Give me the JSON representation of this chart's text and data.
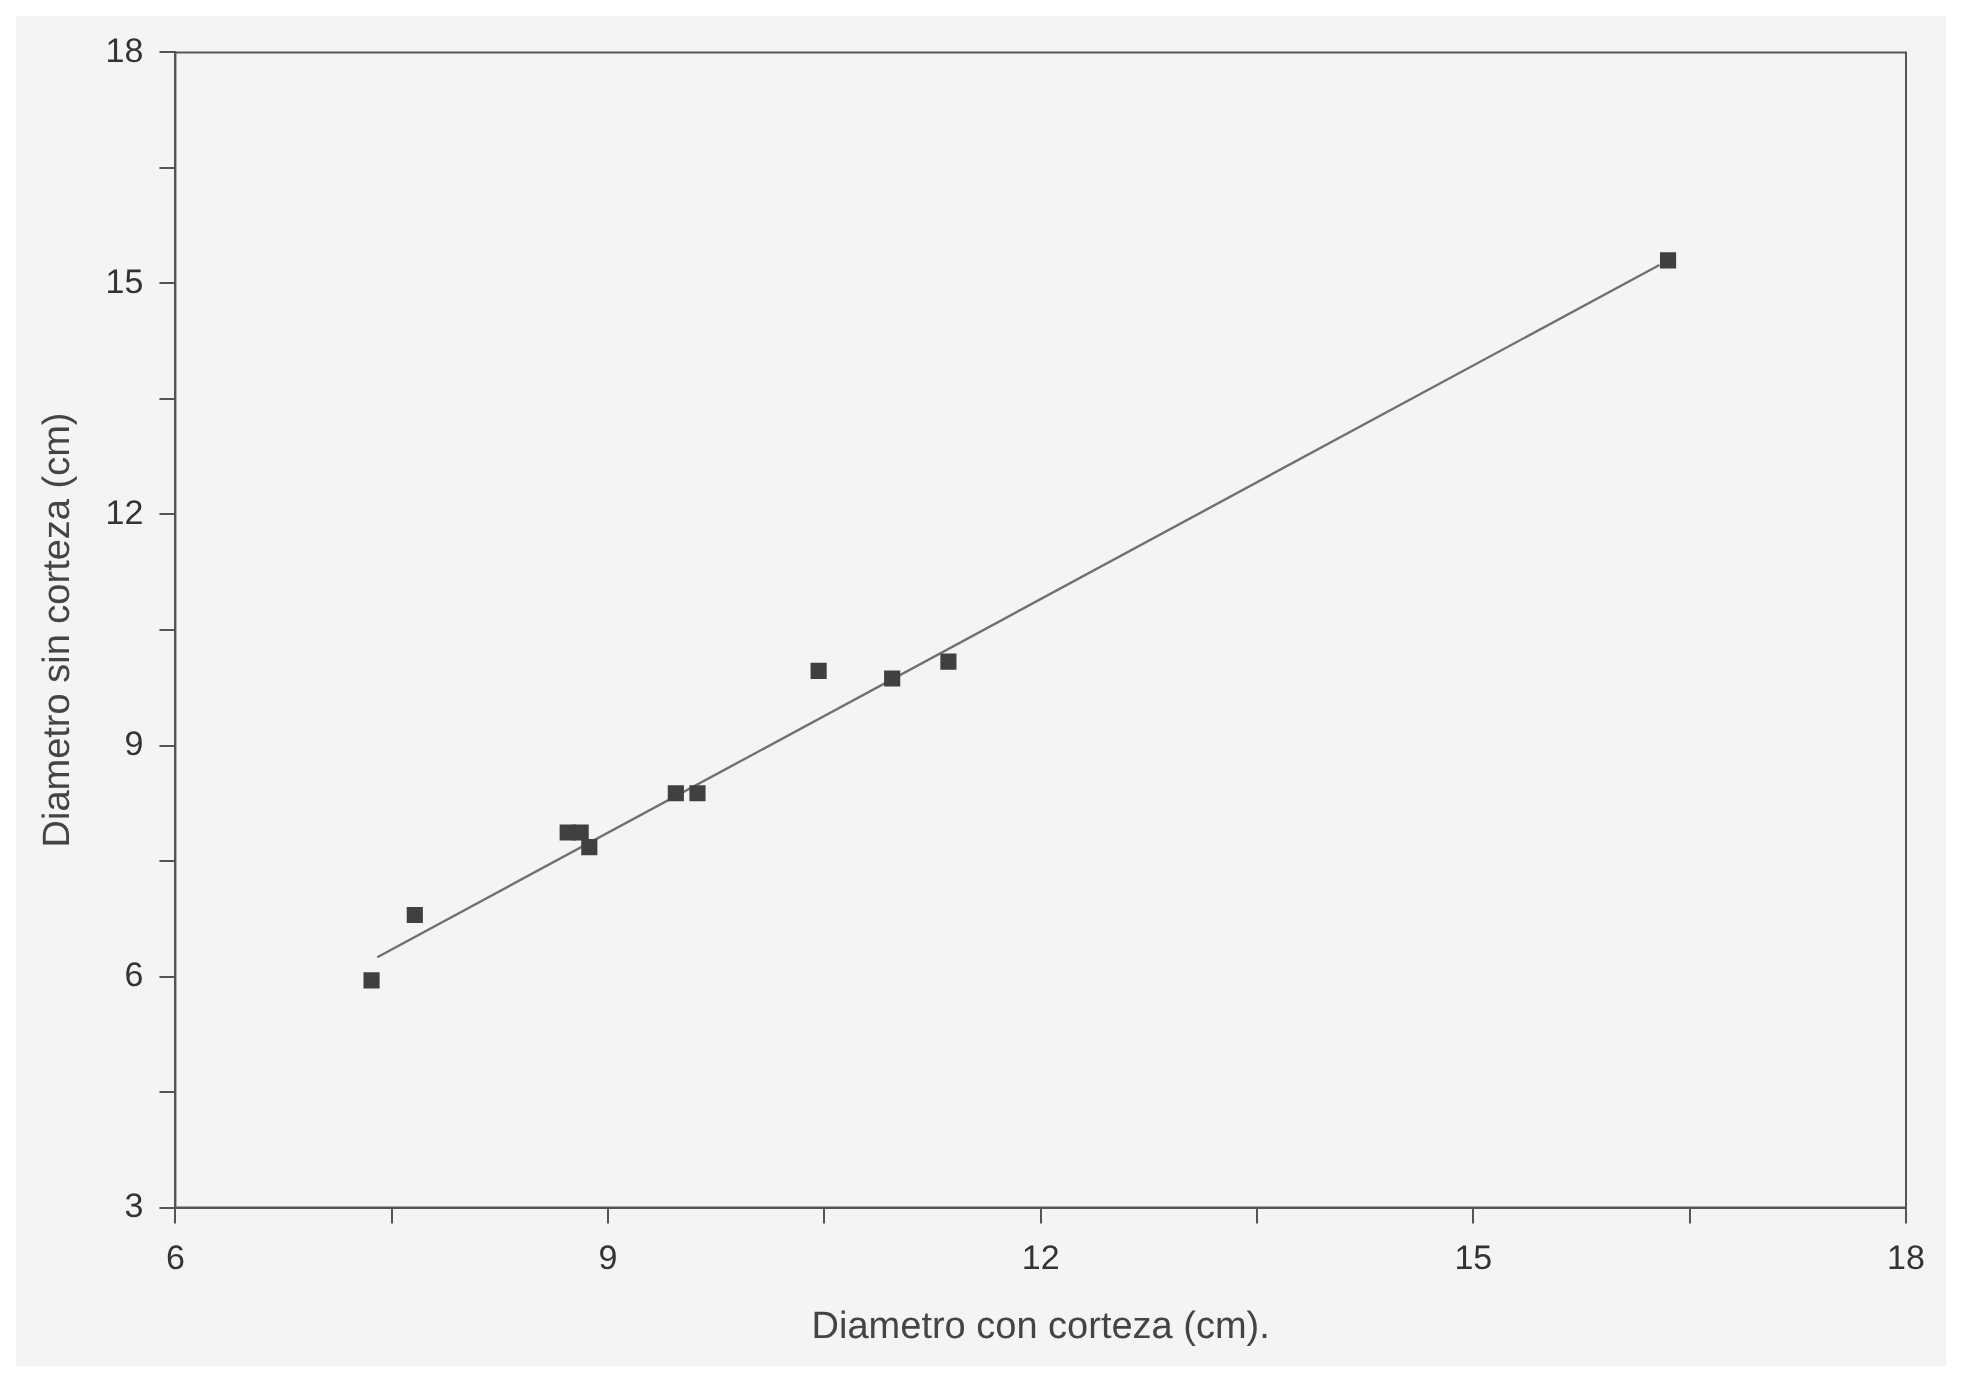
{
  "chart_data": {
    "type": "scatter",
    "xlabel": "Diametro con corteza (cm).",
    "ylabel": "Diametro sin corteza (cm)",
    "xlim": [
      6,
      18
    ],
    "ylim": [
      3,
      18
    ],
    "xticks": [
      6,
      {
        "value": 7.5,
        "label": null
      },
      9,
      {
        "value": 10.5,
        "label": null
      },
      12,
      {
        "value": 13.5,
        "label": null
      },
      15,
      {
        "value": 16.5,
        "label": null
      },
      18
    ],
    "yticks": [
      3,
      {
        "value": 4.5,
        "label": null
      },
      6,
      {
        "value": 7.5,
        "label": null
      },
      9,
      {
        "value": 10.5,
        "label": null
      },
      12,
      {
        "value": 13.5,
        "label": null
      },
      15,
      {
        "value": 16.5,
        "label": null
      },
      18
    ],
    "grid": false,
    "legend": false,
    "marker": "square",
    "series": [
      {
        "type": "scatter",
        "color": "#404040",
        "x": [
          7.36,
          7.66,
          8.72,
          8.81,
          8.87,
          9.47,
          9.62,
          10.46,
          10.97,
          11.36,
          16.35
        ],
        "values": [
          5.95,
          6.8,
          7.87,
          7.87,
          7.68,
          8.38,
          8.38,
          9.97,
          9.87,
          10.09,
          15.3
        ]
      },
      {
        "type": "line",
        "color": "#707070",
        "x": [
          7.4,
          16.29
        ],
        "values": [
          6.25,
          15.24
        ],
        "marker": "none",
        "line_style": "solid"
      }
    ]
  }
}
